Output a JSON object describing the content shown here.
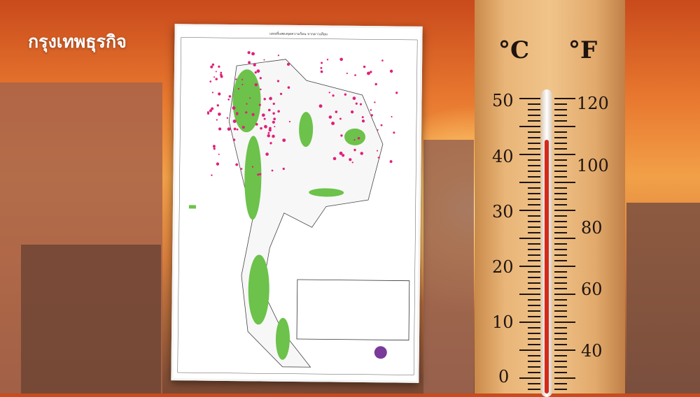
{
  "logo": {
    "text": "กรุงเทพธุรกิจ"
  },
  "map": {
    "title": "แผนที่แสดงจุดความร้อน จากดาวเทียม",
    "land_color": "#6cc24a",
    "hotspot_color": "#e0207a"
  },
  "thermometer": {
    "celsius_label": "°C",
    "fahrenheit_label": "°F",
    "celsius_ticks": [
      "50",
      "40",
      "30",
      "20",
      "10",
      "0"
    ],
    "fahrenheit_ticks": [
      "120",
      "100",
      "80",
      "60",
      "40"
    ],
    "mercury_color": "#d42a1a"
  }
}
